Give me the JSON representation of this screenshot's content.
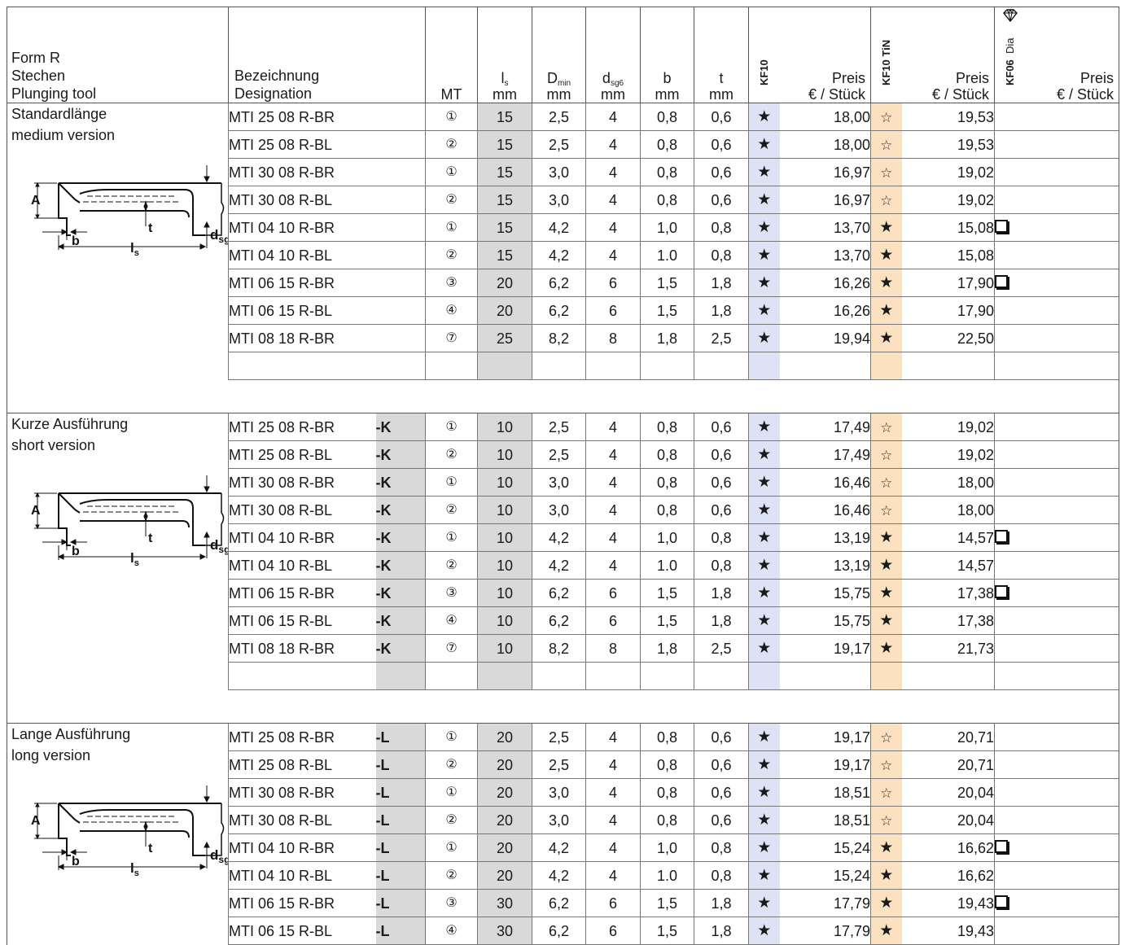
{
  "header": {
    "form_lines": [
      "Form R",
      "Stechen",
      "Plunging tool"
    ],
    "designation_lines": [
      "Bezeichnung",
      "Designation"
    ],
    "mt": "MT",
    "ls_symbol": "l",
    "ls_sub": "s",
    "unit_mm": "mm",
    "dmin_symbol": "D",
    "dmin_sub": "min",
    "dsg6_symbol": "d",
    "dsg6_sub": "sg6",
    "b": "b",
    "t": "t",
    "kf10": "KF10",
    "kf10_tin": "KF10 TiN",
    "kf06": "KF06",
    "dia": "Dia",
    "preis": "Preis",
    "per_piece": "€ / Stück"
  },
  "icons": {
    "kf06_gem": "diamond-icon",
    "available": "filled-star-icon",
    "on_request": "outline-star-icon",
    "option": "checkbox-icon"
  },
  "colors": {
    "kf10_column": "#dde3f4",
    "kf10_tin_column": "#fbe1c0",
    "gray_column": "#d9d9d9"
  },
  "sections": [
    {
      "title_lines": [
        "Standardlänge",
        "medium version"
      ],
      "drawing_labels": {
        "a": "A",
        "b": "b",
        "t": "t",
        "ls": "l",
        "ls_sub": "s",
        "d": "d",
        "d_sub": "sg6"
      },
      "rows": [
        {
          "designation": "MTI 25 08 R-BR",
          "suffix": "",
          "mt": "①",
          "ls": "15",
          "dmin": "2,5",
          "d": "4",
          "b": "0,8",
          "t": "0,6",
          "kf10": "★",
          "kf10_price": "18,00",
          "tin": "☆",
          "tin_price": "19,53",
          "dia": ""
        },
        {
          "designation": "MTI 25 08 R-BL",
          "suffix": "",
          "mt": "②",
          "ls": "15",
          "dmin": "2,5",
          "d": "4",
          "b": "0,8",
          "t": "0,6",
          "kf10": "★",
          "kf10_price": "18,00",
          "tin": "☆",
          "tin_price": "19,53",
          "dia": ""
        },
        {
          "designation": "MTI 30 08 R-BR",
          "suffix": "",
          "mt": "①",
          "ls": "15",
          "dmin": "3,0",
          "d": "4",
          "b": "0,8",
          "t": "0,6",
          "kf10": "★",
          "kf10_price": "16,97",
          "tin": "☆",
          "tin_price": "19,02",
          "dia": ""
        },
        {
          "designation": "MTI 30 08 R-BL",
          "suffix": "",
          "mt": "②",
          "ls": "15",
          "dmin": "3,0",
          "d": "4",
          "b": "0,8",
          "t": "0,6",
          "kf10": "★",
          "kf10_price": "16,97",
          "tin": "☆",
          "tin_price": "19,02",
          "dia": ""
        },
        {
          "designation": "MTI 04 10 R-BR",
          "suffix": "",
          "mt": "①",
          "ls": "15",
          "dmin": "4,2",
          "d": "4",
          "b": "1,0",
          "t": "0,8",
          "kf10": "★",
          "kf10_price": "13,70",
          "tin": "★",
          "tin_price": "15,08",
          "dia": "box"
        },
        {
          "designation": "MTI 04 10 R-BL",
          "suffix": "",
          "mt": "②",
          "ls": "15",
          "dmin": "4,2",
          "d": "4",
          "b": "1.0",
          "t": "0,8",
          "kf10": "★",
          "kf10_price": "13,70",
          "tin": "★",
          "tin_price": "15,08",
          "dia": ""
        },
        {
          "designation": "MTI 06 15 R-BR",
          "suffix": "",
          "mt": "③",
          "ls": "20",
          "dmin": "6,2",
          "d": "6",
          "b": "1,5",
          "t": "1,8",
          "kf10": "★",
          "kf10_price": "16,26",
          "tin": "★",
          "tin_price": "17,90",
          "dia": "box"
        },
        {
          "designation": "MTI 06 15 R-BL",
          "suffix": "",
          "mt": "④",
          "ls": "20",
          "dmin": "6,2",
          "d": "6",
          "b": "1,5",
          "t": "1,8",
          "kf10": "★",
          "kf10_price": "16,26",
          "tin": "★",
          "tin_price": "17,90",
          "dia": ""
        },
        {
          "designation": "MTI 08 18 R-BR",
          "suffix": "",
          "mt": "⑦",
          "ls": "25",
          "dmin": "8,2",
          "d": "8",
          "b": "1,8",
          "t": "2,5",
          "kf10": "★",
          "kf10_price": "19,94",
          "tin": "★",
          "tin_price": "22,50",
          "dia": ""
        }
      ]
    },
    {
      "title_lines": [
        "Kurze Ausführung",
        "short version"
      ],
      "drawing_labels": {
        "a": "A",
        "b": "b",
        "t": "t",
        "ls": "l",
        "ls_sub": "s",
        "d": "d",
        "d_sub": "sg6"
      },
      "rows": [
        {
          "designation": "MTI 25 08 R-BR",
          "suffix": "-K",
          "mt": "①",
          "ls": "10",
          "dmin": "2,5",
          "d": "4",
          "b": "0,8",
          "t": "0,6",
          "kf10": "★",
          "kf10_price": "17,49",
          "tin": "☆",
          "tin_price": "19,02",
          "dia": ""
        },
        {
          "designation": "MTI 25 08 R-BL",
          "suffix": "-K",
          "mt": "②",
          "ls": "10",
          "dmin": "2,5",
          "d": "4",
          "b": "0,8",
          "t": "0,6",
          "kf10": "★",
          "kf10_price": "17,49",
          "tin": "☆",
          "tin_price": "19,02",
          "dia": ""
        },
        {
          "designation": "MTI 30 08 R-BR",
          "suffix": "-K",
          "mt": "①",
          "ls": "10",
          "dmin": "3,0",
          "d": "4",
          "b": "0,8",
          "t": "0,6",
          "kf10": "★",
          "kf10_price": "16,46",
          "tin": "☆",
          "tin_price": "18,00",
          "dia": ""
        },
        {
          "designation": "MTI 30 08 R-BL",
          "suffix": "-K",
          "mt": "②",
          "ls": "10",
          "dmin": "3,0",
          "d": "4",
          "b": "0,8",
          "t": "0,6",
          "kf10": "★",
          "kf10_price": "16,46",
          "tin": "☆",
          "tin_price": "18,00",
          "dia": ""
        },
        {
          "designation": "MTI 04 10 R-BR",
          "suffix": "-K",
          "mt": "①",
          "ls": "10",
          "dmin": "4,2",
          "d": "4",
          "b": "1,0",
          "t": "0,8",
          "kf10": "★",
          "kf10_price": "13,19",
          "tin": "★",
          "tin_price": "14,57",
          "dia": "box"
        },
        {
          "designation": "MTI 04 10 R-BL",
          "suffix": "-K",
          "mt": "②",
          "ls": "10",
          "dmin": "4,2",
          "d": "4",
          "b": "1.0",
          "t": "0,8",
          "kf10": "★",
          "kf10_price": "13,19",
          "tin": "★",
          "tin_price": "14,57",
          "dia": ""
        },
        {
          "designation": "MTI 06 15 R-BR",
          "suffix": "-K",
          "mt": "③",
          "ls": "10",
          "dmin": "6,2",
          "d": "6",
          "b": "1,5",
          "t": "1,8",
          "kf10": "★",
          "kf10_price": "15,75",
          "tin": "★",
          "tin_price": "17,38",
          "dia": "box"
        },
        {
          "designation": "MTI 06 15 R-BL",
          "suffix": "-K",
          "mt": "④",
          "ls": "10",
          "dmin": "6,2",
          "d": "6",
          "b": "1,5",
          "t": "1,8",
          "kf10": "★",
          "kf10_price": "15,75",
          "tin": "★",
          "tin_price": "17,38",
          "dia": ""
        },
        {
          "designation": "MTI 08 18 R-BR",
          "suffix": "-K",
          "mt": "⑦",
          "ls": "10",
          "dmin": "8,2",
          "d": "8",
          "b": "1,8",
          "t": "2,5",
          "kf10": "★",
          "kf10_price": "19,17",
          "tin": "★",
          "tin_price": "21,73",
          "dia": ""
        }
      ]
    },
    {
      "title_lines": [
        "Lange Ausführung",
        "long version"
      ],
      "drawing_labels": {
        "a": "A",
        "b": "b",
        "t": "t",
        "ls": "l",
        "ls_sub": "s",
        "d": "d",
        "d_sub": "sg6"
      },
      "rows": [
        {
          "designation": "MTI 25 08 R-BR",
          "suffix": "-L",
          "mt": "①",
          "ls": "20",
          "dmin": "2,5",
          "d": "4",
          "b": "0,8",
          "t": "0,6",
          "kf10": "★",
          "kf10_price": "19,17",
          "tin": "☆",
          "tin_price": "20,71",
          "dia": ""
        },
        {
          "designation": "MTI 25 08 R-BL",
          "suffix": "-L",
          "mt": "②",
          "ls": "20",
          "dmin": "2,5",
          "d": "4",
          "b": "0,8",
          "t": "0,6",
          "kf10": "★",
          "kf10_price": "19,17",
          "tin": "☆",
          "tin_price": "20,71",
          "dia": ""
        },
        {
          "designation": "MTI 30 08 R-BR",
          "suffix": "-L",
          "mt": "①",
          "ls": "20",
          "dmin": "3,0",
          "d": "4",
          "b": "0,8",
          "t": "0,6",
          "kf10": "★",
          "kf10_price": "18,51",
          "tin": "☆",
          "tin_price": "20,04",
          "dia": ""
        },
        {
          "designation": "MTI 30 08 R-BL",
          "suffix": "-L",
          "mt": "②",
          "ls": "20",
          "dmin": "3,0",
          "d": "4",
          "b": "0,8",
          "t": "0,6",
          "kf10": "★",
          "kf10_price": "18,51",
          "tin": "☆",
          "tin_price": "20,04",
          "dia": ""
        },
        {
          "designation": "MTI 04 10 R-BR",
          "suffix": "-L",
          "mt": "①",
          "ls": "20",
          "dmin": "4,2",
          "d": "4",
          "b": "1,0",
          "t": "0,8",
          "kf10": "★",
          "kf10_price": "15,24",
          "tin": "★",
          "tin_price": "16,62",
          "dia": "box"
        },
        {
          "designation": "MTI 04 10 R-BL",
          "suffix": "-L",
          "mt": "②",
          "ls": "20",
          "dmin": "4,2",
          "d": "4",
          "b": "1.0",
          "t": "0,8",
          "kf10": "★",
          "kf10_price": "15,24",
          "tin": "★",
          "tin_price": "16,62",
          "dia": ""
        },
        {
          "designation": "MTI 06 15 R-BR",
          "suffix": "-L",
          "mt": "③",
          "ls": "30",
          "dmin": "6,2",
          "d": "6",
          "b": "1,5",
          "t": "1,8",
          "kf10": "★",
          "kf10_price": "17,79",
          "tin": "★",
          "tin_price": "19,43",
          "dia": "box"
        },
        {
          "designation": "MTI 06 15 R-BL",
          "suffix": "-L",
          "mt": "④",
          "ls": "30",
          "dmin": "6,2",
          "d": "6",
          "b": "1,5",
          "t": "1,8",
          "kf10": "★",
          "kf10_price": "17,79",
          "tin": "★",
          "tin_price": "19,43",
          "dia": ""
        }
      ]
    }
  ]
}
